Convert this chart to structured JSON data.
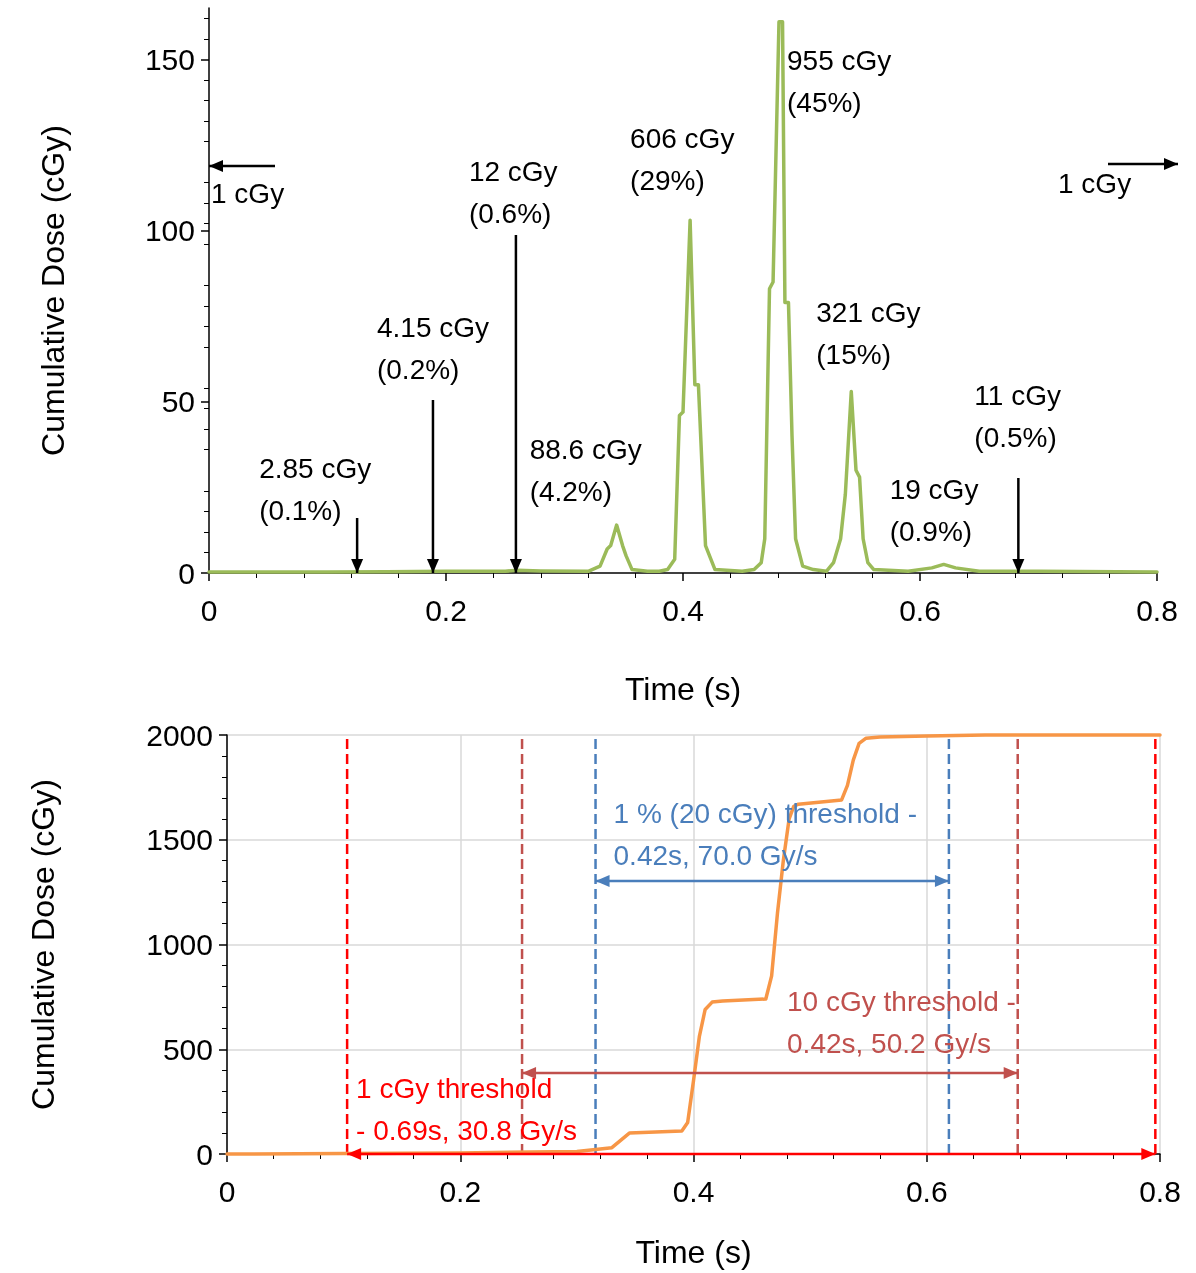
{
  "chart_data": [
    {
      "type": "line",
      "xlabel": "Time (s)",
      "ylabel": "Cumulative Dose (cGy)",
      "xlim": [
        0,
        0.8
      ],
      "ylim": [
        0,
        165
      ],
      "xticks": [
        0,
        0.2,
        0.4,
        0.6,
        0.8
      ],
      "yticks": [
        0,
        50,
        100,
        150
      ],
      "grid": false,
      "marker": "none",
      "line_style": "solid",
      "series": [
        {
          "color": "#9bbb59",
          "x": [
            0,
            0.05,
            0.1,
            0.15,
            0.2,
            0.25,
            0.26,
            0.28,
            0.32,
            0.33,
            0.336,
            0.339,
            0.344,
            0.349,
            0.352,
            0.357,
            0.37,
            0.38,
            0.387,
            0.393,
            0.397,
            0.4,
            0.406,
            0.41,
            0.413,
            0.419,
            0.427,
            0.45,
            0.46,
            0.466,
            0.469,
            0.473,
            0.476,
            0.481,
            0.484,
            0.486,
            0.489,
            0.492,
            0.495,
            0.501,
            0.51,
            0.521,
            0.527,
            0.533,
            0.537,
            0.542,
            0.546,
            0.549,
            0.552,
            0.556,
            0.561,
            0.59,
            0.61,
            0.62,
            0.63,
            0.65,
            0.7,
            0.8
          ],
          "values": [
            0.3,
            0.3,
            0.3,
            0.4,
            0.5,
            0.5,
            0.8,
            0.6,
            0.5,
            2,
            7,
            8,
            14,
            8,
            5,
            1,
            0.5,
            0.5,
            1,
            4,
            46,
            47,
            103,
            55,
            55,
            8,
            1,
            0.5,
            1,
            3,
            10,
            83,
            85,
            161,
            161,
            79,
            79,
            40,
            10,
            2,
            1,
            0.5,
            3,
            10,
            23,
            53,
            30,
            28,
            10,
            3,
            1,
            0.5,
            1.5,
            2.5,
            1.5,
            0.5,
            0.5,
            0.3
          ]
        }
      ],
      "annotations": [
        "1 cGy",
        {
          "text": "2.85 cGy\n(0.1%)",
          "x": 0.125,
          "y": 0
        },
        {
          "text": "4.15 cGy\n(0.2%)",
          "x": 0.189,
          "y": 0
        },
        {
          "text": "12 cGy\n(0.6%)",
          "x": 0.259,
          "y": 0
        },
        {
          "text": "88.6 cGy\n(4.2%)",
          "x": 0.344,
          "y": 14
        },
        {
          "text": "606 cGy\n(29%)",
          "x": 0.406,
          "y": 103
        },
        {
          "text": "955 cGy\n(45%)",
          "x": 0.481,
          "y": 161
        },
        {
          "text": "321 cGy\n(15%)",
          "x": 0.542,
          "y": 53
        },
        {
          "text": "19 cGy\n(0.9%)",
          "x": 0.62,
          "y": 2.5
        },
        {
          "text": "11 cGy\n(0.5%)",
          "x": 0.683,
          "y": 0
        },
        "1 cGy"
      ]
    },
    {
      "type": "line",
      "xlabel": "Time (s)",
      "ylabel": "Cumulative Dose (cGy)",
      "xlim": [
        0,
        0.8
      ],
      "ylim": [
        0,
        2000
      ],
      "xticks": [
        0,
        0.2,
        0.4,
        0.6,
        0.8
      ],
      "yticks": [
        0,
        500,
        1000,
        1500,
        2000
      ],
      "grid": true,
      "marker": "none",
      "line_style": "solid",
      "series": [
        {
          "color": "#f79646",
          "x": [
            0,
            0.1,
            0.2,
            0.3,
            0.33,
            0.345,
            0.39,
            0.395,
            0.4,
            0.405,
            0.41,
            0.416,
            0.425,
            0.462,
            0.467,
            0.472,
            0.477,
            0.482,
            0.486,
            0.49,
            0.527,
            0.532,
            0.537,
            0.542,
            0.548,
            0.56,
            0.6,
            0.65,
            0.7,
            0.8
          ],
          "values": [
            0,
            2,
            5,
            12,
            30,
            100,
            110,
            150,
            350,
            560,
            690,
            725,
            730,
            740,
            850,
            1150,
            1400,
            1600,
            1660,
            1670,
            1690,
            1760,
            1880,
            1960,
            1985,
            1990,
            1995,
            2000,
            2000,
            2000
          ]
        }
      ],
      "ref_lines": [
        {
          "axis": "x",
          "value": 0.103,
          "label": "1 cGy threshold\n- 0.69s, 30.8 Gy/s",
          "color": "#ff0000",
          "line_style": "dashed"
        },
        {
          "axis": "x",
          "value": 0.796,
          "color": "#ff0000",
          "line_style": "dashed"
        },
        {
          "axis": "x",
          "value": 0.253,
          "label": "10 cGy threshold -\n0.42s, 50.2 Gy/s",
          "color": "#c0504d",
          "line_style": "dashed"
        },
        {
          "axis": "x",
          "value": 0.678,
          "color": "#c0504d",
          "line_style": "dashed"
        },
        {
          "axis": "x",
          "value": 0.316,
          "label": "1 % (20 cGy) threshold -\n0.42s, 70.0 Gy/s",
          "color": "#4a7ebb",
          "line_style": "dashed"
        },
        {
          "axis": "x",
          "value": 0.619,
          "color": "#4a7ebb",
          "line_style": "dashed"
        }
      ]
    }
  ]
}
